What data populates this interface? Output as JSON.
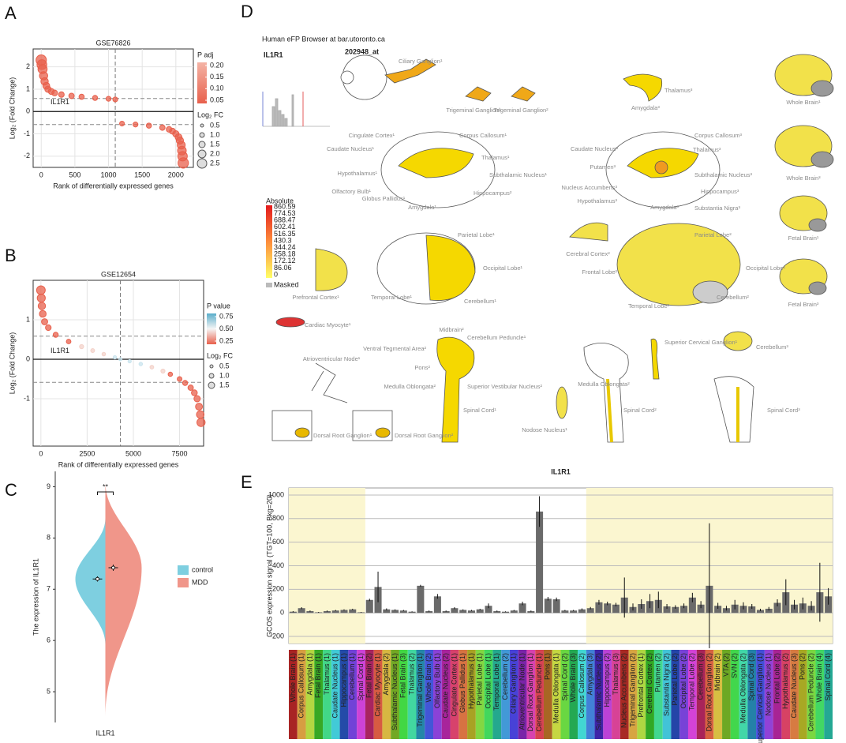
{
  "panel_labels": [
    "A",
    "B",
    "C",
    "D",
    "E"
  ],
  "chart_data": [
    {
      "type": "scatter",
      "title": "GSE76826",
      "x_label": "Rank of differentially expressed genes",
      "y_label": "Log₂ (Fold Change)",
      "x": [
        0,
        10,
        20,
        35,
        50,
        75,
        100,
        150,
        200,
        300,
        450,
        600,
        800,
        1000,
        1100,
        1200,
        1400,
        1600,
        1800,
        1900,
        1950,
        2000,
        2040,
        2060,
        2080,
        2090,
        2100,
        2110
      ],
      "values": [
        2.3,
        2.1,
        1.9,
        1.6,
        1.35,
        1.15,
        1.0,
        0.9,
        0.83,
        0.76,
        0.7,
        0.66,
        0.61,
        0.57,
        0.54,
        -0.54,
        -0.58,
        -0.63,
        -0.72,
        -0.8,
        -0.88,
        -1.0,
        -1.15,
        -1.3,
        -1.5,
        -1.75,
        -2.0,
        -2.3
      ],
      "color": "#e8604c",
      "xlim": [
        -120,
        2260
      ],
      "xticks": [
        0,
        500,
        1000,
        1500,
        2000
      ],
      "ylim": [
        -2.5,
        2.8
      ],
      "yticks": [
        -2,
        -1,
        0,
        1,
        2
      ],
      "hlines": [
        0.585,
        -0.585
      ],
      "vline": 1100,
      "annotation": "IL1R1",
      "grid": true,
      "legend_color": {
        "title": "P adj",
        "ticks": [
          {
            "value": 0.2,
            "label": "0.20"
          },
          0.15,
          {
            "value": 0.1,
            "label": "0.10"
          },
          0.05
        ],
        "colors": [
          "#f4b3a5",
          "#e8604c"
        ]
      },
      "legend_size": {
        "title": "Log₂ FC",
        "values": [
          0.5,
          {
            "value": 1,
            "label": "1.0"
          },
          1.5,
          {
            "value": 2,
            "label": "2.0"
          },
          2.5
        ]
      }
    },
    {
      "type": "scatter",
      "title": "GSE12654",
      "x_label": "Rank of differentially expressed genes",
      "y_label": "Log₂ (Fold Change)",
      "x": [
        0,
        20,
        50,
        100,
        200,
        400,
        800,
        1500,
        2200,
        2800,
        3400,
        4000,
        4300,
        4800,
        5400,
        6000,
        6600,
        7000,
        7500,
        7800,
        8100,
        8300,
        8450,
        8550,
        8620,
        8660
      ],
      "values": [
        1.75,
        1.55,
        1.35,
        1.15,
        0.95,
        0.8,
        0.62,
        0.45,
        0.32,
        0.22,
        0.13,
        0.05,
        0.0,
        -0.05,
        -0.12,
        -0.2,
        -0.3,
        -0.38,
        -0.5,
        -0.6,
        -0.72,
        -0.85,
        -1.0,
        -1.2,
        -1.4,
        -1.6
      ],
      "color": "#e8604c",
      "xlim": [
        -420,
        8800
      ],
      "xticks": [
        0,
        2500,
        5000,
        7500
      ],
      "ylim": [
        -2.2,
        2.0
      ],
      "yticks": [
        -1,
        0,
        1
      ],
      "hlines": [
        0.585,
        -0.585
      ],
      "vline": 4300,
      "annotation": "IL1R1",
      "grid": true,
      "legend_color": {
        "title": "P value",
        "ticks": [
          0.75,
          {
            "value": 0.5,
            "label": "0.50"
          },
          0.25
        ],
        "colors": [
          "#5aaecb",
          "#f5f5f5",
          "#e8604c"
        ]
      },
      "legend_size": {
        "title": "Log₂ FC",
        "values": [
          0.5,
          {
            "value": 1,
            "label": "1.0"
          },
          1.5
        ]
      }
    },
    {
      "type": "violin",
      "y_label": "The expression of IL1R1",
      "categories": [
        "IL1R1"
      ],
      "annotation": "**",
      "ylim": [
        4.4,
        9.3
      ],
      "yticks": [
        5,
        6,
        7,
        8,
        9
      ],
      "series": [
        {
          "name": "control",
          "color": "#7ecfe0",
          "values": [
            7.2
          ],
          "errors": [
            0.05
          ],
          "range": [
            5.9,
            8.4
          ]
        },
        {
          "name": "MDD",
          "color": "#f0968a",
          "values": [
            7.42
          ],
          "errors": [
            0.06
          ],
          "range": [
            4.5,
            9.1
          ]
        }
      ]
    },
    {
      "type": "bar",
      "title": "IL1R1",
      "y_label": "GCOS expression signal (TGT=100, Bkg=20)",
      "color": "#6a6a6a",
      "ylim": [
        -260,
        1060
      ],
      "yticks": [
        -200,
        0,
        200,
        400,
        600,
        800,
        1000
      ],
      "grid": true,
      "categories": [
        "Whole Brain (1)",
        "Corpus Callosum (1)",
        "Amygdala (1)",
        "Fetal Brain (1)",
        "Thalamus (1)",
        "Caudate Nucleus (1)",
        "Hippocampus (1)",
        "Cerebellum (1)",
        "Spinal Cord (1)",
        "Fetal Brain (2)",
        "Cardiac Myocyte (1)",
        "Amygdala (2)",
        "Subthalamic Nucleus (1)",
        "Fetal Brain (3)",
        "Thalamus (2)",
        "Trigeminal Ganglion (1)",
        "Whole Brain (2)",
        "Olfactory Bulb (1)",
        "Caudate Nucleus (2)",
        "Cingulate Cortex (1)",
        "Globus Pallidus (1)",
        "Hypothalamus (1)",
        "Parietal Lobe (1)",
        "Occipital Lobe (1)",
        "Temporal Lobe (1)",
        "Cerebellum (2)",
        "Ciliary Ganglion (1)",
        "Atrioventricular Node (1)",
        "Dorsal Root Ganglion (1)",
        "Cerebellum Peduncle (1)",
        "Pons (1)",
        "Medulla Oblongata (1)",
        "Spinal Cord (2)",
        "Whole Brain (3)",
        "Corpus Callosum (2)",
        "Amygdala (3)",
        "Subthalamic Nucleus (2)",
        "Hippocampus (2)",
        "Thalamus (3)",
        "Nucleus Accumbens (2)",
        "Trigeminal Ganglion (2)",
        "Prefrontal Cortex (1)",
        "Cerebral Cortex (2)",
        "Putamen (2)",
        "Substantia Nigra (2)",
        "Parietal Lobe (2)",
        "Occipital Lobe (2)",
        "Temporal Lobe (2)",
        "Cerebellum (3)",
        "Dorsal Root Ganglion (2)",
        "Midbrain (2)",
        "VTA (2)",
        "SVN (2)",
        "Medulla Oblongata (2)",
        "Spinal Cord (3)",
        "Superior Cervical Ganglion (1)",
        "Nodose Nucleus (1)",
        "Frontal Lobe (2)",
        "Hypothalamus (2)",
        "Caudate Nucleus (3)",
        "Pons (2)",
        "Cerebellum Peduncle (2)",
        "Whole Brain (4)",
        "Spinal Cord (4)"
      ],
      "values": [
        10,
        40,
        15,
        5,
        15,
        20,
        25,
        30,
        5,
        110,
        220,
        30,
        25,
        20,
        10,
        230,
        15,
        140,
        15,
        40,
        25,
        20,
        30,
        60,
        15,
        10,
        20,
        80,
        15,
        860,
        120,
        115,
        20,
        20,
        30,
        40,
        90,
        80,
        70,
        130,
        50,
        75,
        100,
        110,
        55,
        50,
        60,
        130,
        70,
        230,
        60,
        40,
        70,
        60,
        55,
        25,
        35,
        85,
        175,
        70,
        80,
        60,
        175,
        140
      ],
      "errors": [
        5,
        8,
        5,
        3,
        5,
        5,
        5,
        5,
        3,
        10,
        130,
        8,
        5,
        5,
        3,
        8,
        5,
        20,
        5,
        8,
        5,
        5,
        5,
        20,
        5,
        3,
        5,
        15,
        5,
        130,
        15,
        15,
        5,
        5,
        8,
        10,
        20,
        15,
        15,
        170,
        30,
        40,
        60,
        70,
        20,
        15,
        20,
        40,
        30,
        530,
        25,
        20,
        40,
        30,
        20,
        10,
        15,
        30,
        110,
        40,
        50,
        40,
        250,
        70
      ]
    }
  ],
  "diagram": {
    "title": "Human eFP Browser at bar.utoronto.ca",
    "gene": "IL1R1",
    "probe": "202948_at",
    "colorscale": {
      "title": "Absolute",
      "labels": [
        860.59,
        774.53,
        688.47,
        602.41,
        516.35,
        430.3,
        344.24,
        258.18,
        172.12,
        86.06,
        0
      ],
      "masked": "Masked"
    },
    "labels": [
      "Ciliary Ganglion¹",
      "Trigeminal Ganglion¹",
      "Trigeminal Ganglion²",
      "Thalamus³",
      "Amygdala³",
      "Whole Brain¹",
      "Cingulate Cortex¹",
      "Corpus Callosum¹",
      "Caudate Nucleus¹",
      "Thalamus¹",
      "Hypothalamus¹",
      "Subthalamic Nucleus¹",
      "Olfactory Bulb¹",
      "Globus Pallidus¹",
      "Hippocampus²",
      "Amygdala¹",
      "Corpus Callosum³",
      "Caudate Nucleus³",
      "Thalamus³",
      "Putamen³",
      "Subthalamic Nucleus³",
      "Nucleus Accumbens³",
      "Hippocampus³",
      "Hypothalamus³",
      "Amygdala³",
      "Substantia Nigra³",
      "Whole Brain³",
      "Parietal Lobe¹",
      "Cerebral Cortex²",
      "Parietal Lobe²",
      "Fetal Brain¹",
      "Occipital Lobe¹",
      "Occipital Lobe²",
      "Frontal Lobe²",
      "Prefrontal Cortex¹",
      "Temporal Lobe¹",
      "Cerebellum¹",
      "Temporal Lobe²",
      "Cerebellum²",
      "Fetal Brain³",
      "Cardiac Myocyte¹",
      "Midbrain²",
      "Cerebellum Peduncle¹",
      "Superior Cervical Ganglion¹",
      "Cerebellum³",
      "Atrioventricular Node¹",
      "Ventral Tegmental Area²",
      "Pons²",
      "Medulla Oblongata²",
      "Superior Vestibular Nucleus²",
      "Medulla Oblongata²",
      "Spinal Cord¹",
      "Nodose Nucleus¹",
      "Spinal Cord²",
      "Spinal Cord³",
      "Dorsal Root Ganglion¹",
      "Dorsal Root Ganglion²"
    ]
  }
}
